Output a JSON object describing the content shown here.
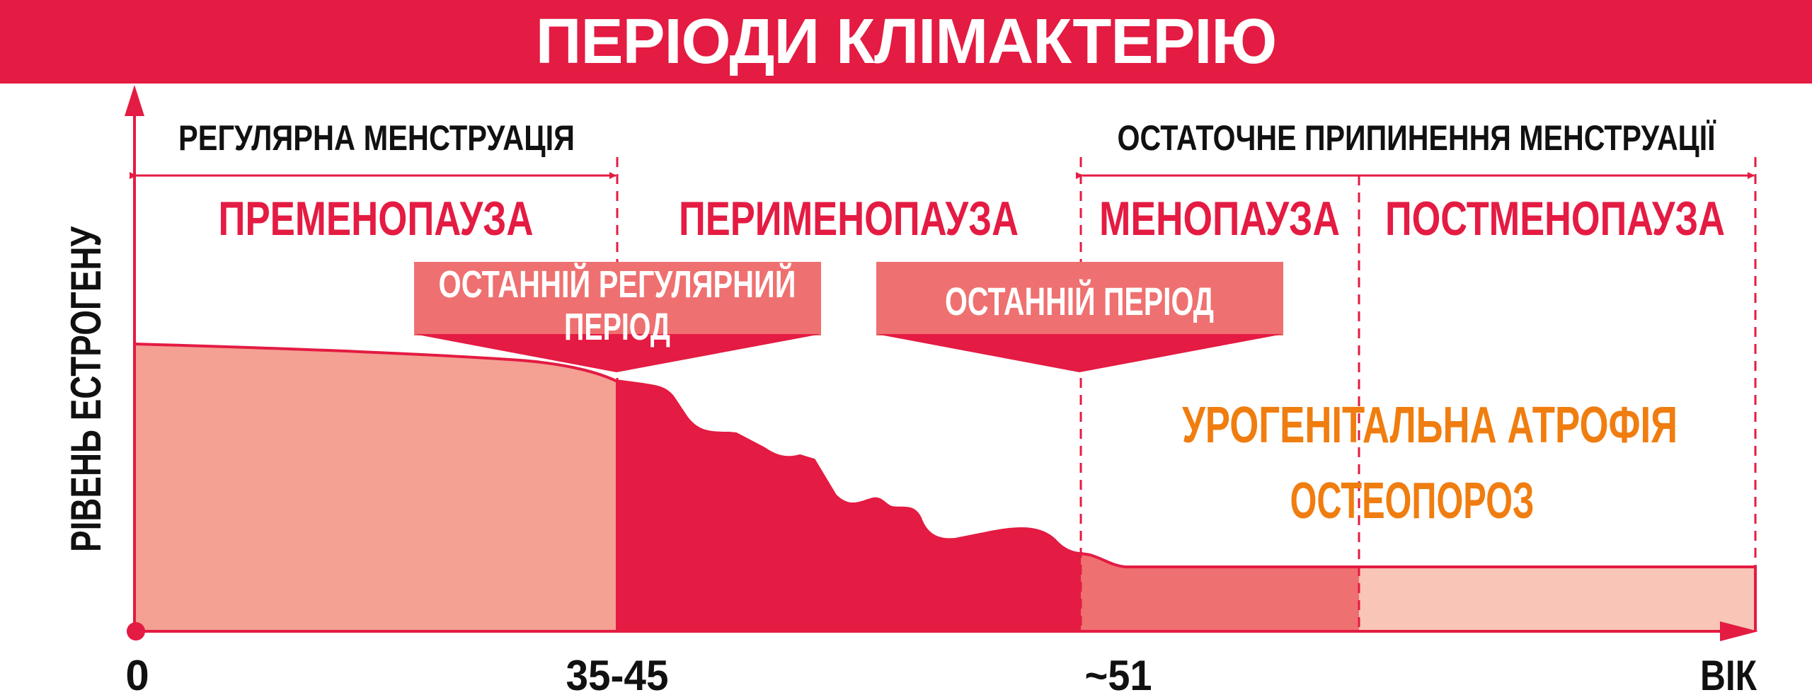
{
  "title": "ПЕРІОДИ КЛІМАКТЕРІЮ",
  "y_axis_label": "РІВЕНЬ ЕСТРОГЕНУ",
  "x_axis": {
    "ticks": [
      "0",
      "35-45",
      "~51"
    ],
    "label": "ВІК"
  },
  "top_spans": {
    "left": "РЕГУЛЯРНА МЕНСТРУАЦІЯ",
    "right": "ОСТАТОЧНЕ ПРИПИНЕННЯ МЕНСТРУАЦІЇ"
  },
  "phases": [
    "ПРЕМЕНОПАУЗА",
    "ПЕРИМЕНОПАУЗА",
    "МЕНОПАУЗА",
    "ПОСТМЕНОПАУЗА"
  ],
  "callouts": {
    "last_regular": [
      "ОСТАННІЙ РЕГУЛЯРНИЙ",
      "ПЕРІОД"
    ],
    "last_period": "ОСТАННІЙ ПЕРІОД"
  },
  "effects": [
    "УРОГЕНІТАЛЬНА АТРОФІЯ",
    "ОСТЕОПОРОЗ"
  ],
  "colors": {
    "brand_red": "#e41b42",
    "premenopause_fill": "#f4a093",
    "perimenopause_fill": "#e41b42",
    "menopause_fill": "#ef7070",
    "postmenopause_fill": "#f8c5b7",
    "callout_box": "#ef7070",
    "effects_text": "#f07d0f",
    "text_dark": "#111111"
  }
}
